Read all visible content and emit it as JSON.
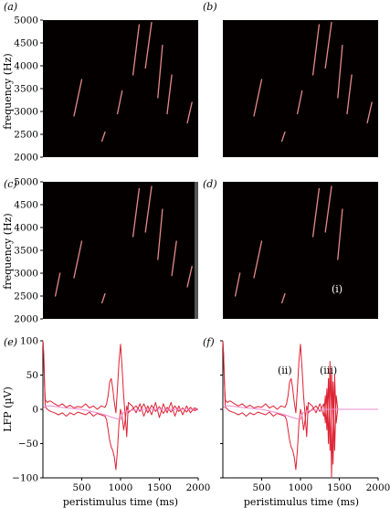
{
  "figure": {
    "panels": [
      {
        "key": "a",
        "label": "(a)"
      },
      {
        "key": "b",
        "label": "(b)"
      },
      {
        "key": "c",
        "label": "(c)"
      },
      {
        "key": "d",
        "label": "(d)"
      },
      {
        "key": "e",
        "label": "(e)"
      },
      {
        "key": "f",
        "label": "(f)"
      }
    ],
    "annotations": {
      "d_i": "(i)",
      "f_ii": "(ii)",
      "f_iii": "(iii)"
    }
  },
  "chart_data": [
    {
      "type": "heatmap",
      "panel": "a",
      "ylabel": "frequency (Hz)",
      "ylim": [
        2000,
        5000
      ],
      "yticks": [
        "2000",
        "2500",
        "3000",
        "3500",
        "4000",
        "4500",
        "5000"
      ],
      "background": "#050000",
      "stroke_color": "#ff9a9a",
      "strokes": [
        {
          "t0": 0.2,
          "f0": 2900,
          "t1": 0.25,
          "f1": 3700
        },
        {
          "t0": 0.38,
          "f0": 2350,
          "t1": 0.4,
          "f1": 2550
        },
        {
          "t0": 0.48,
          "f0": 2950,
          "t1": 0.51,
          "f1": 3450
        },
        {
          "t0": 0.58,
          "f0": 3800,
          "t1": 0.62,
          "f1": 4900
        },
        {
          "t0": 0.66,
          "f0": 3950,
          "t1": 0.7,
          "f1": 4950
        },
        {
          "t0": 0.74,
          "f0": 3300,
          "t1": 0.77,
          "f1": 4450
        },
        {
          "t0": 0.8,
          "f0": 2950,
          "t1": 0.83,
          "f1": 3800
        },
        {
          "t0": 0.93,
          "f0": 2750,
          "t1": 0.96,
          "f1": 3200
        }
      ]
    },
    {
      "type": "heatmap",
      "panel": "b",
      "ylim": [
        2000,
        5000
      ],
      "background": "#050000",
      "stroke_color": "#ff9a9a",
      "strokes": [
        {
          "t0": 0.2,
          "f0": 2900,
          "t1": 0.25,
          "f1": 3700
        },
        {
          "t0": 0.38,
          "f0": 2350,
          "t1": 0.4,
          "f1": 2550
        },
        {
          "t0": 0.48,
          "f0": 2950,
          "t1": 0.51,
          "f1": 3450
        },
        {
          "t0": 0.58,
          "f0": 3800,
          "t1": 0.62,
          "f1": 4900
        },
        {
          "t0": 0.66,
          "f0": 3950,
          "t1": 0.7,
          "f1": 4950
        },
        {
          "t0": 0.74,
          "f0": 3300,
          "t1": 0.77,
          "f1": 4450
        },
        {
          "t0": 0.8,
          "f0": 2950,
          "t1": 0.83,
          "f1": 3800
        },
        {
          "t0": 0.93,
          "f0": 2750,
          "t1": 0.96,
          "f1": 3200
        }
      ]
    },
    {
      "type": "heatmap",
      "panel": "c",
      "ylabel": "frequency (Hz)",
      "ylim": [
        2000,
        5000
      ],
      "yticks": [
        "2000",
        "2500",
        "3000",
        "3500",
        "4000",
        "4500",
        "5000"
      ],
      "background": "#050000",
      "stroke_color": "#ff9a9a",
      "strokes": [
        {
          "t0": 0.08,
          "f0": 2500,
          "t1": 0.11,
          "f1": 3000
        },
        {
          "t0": 0.2,
          "f0": 2900,
          "t1": 0.25,
          "f1": 3700
        },
        {
          "t0": 0.38,
          "f0": 2350,
          "t1": 0.4,
          "f1": 2550
        },
        {
          "t0": 0.58,
          "f0": 3800,
          "t1": 0.62,
          "f1": 4850
        },
        {
          "t0": 0.66,
          "f0": 3900,
          "t1": 0.7,
          "f1": 4900
        },
        {
          "t0": 0.74,
          "f0": 3300,
          "t1": 0.77,
          "f1": 4400
        },
        {
          "t0": 0.83,
          "f0": 2950,
          "t1": 0.86,
          "f1": 3700
        },
        {
          "t0": 0.93,
          "f0": 2700,
          "t1": 0.96,
          "f1": 3150
        }
      ]
    },
    {
      "type": "heatmap",
      "panel": "d",
      "ylim": [
        2000,
        5000
      ],
      "background": "#050000",
      "stroke_color": "#ff9a9a",
      "strokes": [
        {
          "t0": 0.08,
          "f0": 2500,
          "t1": 0.11,
          "f1": 3000
        },
        {
          "t0": 0.2,
          "f0": 2900,
          "t1": 0.25,
          "f1": 3700
        },
        {
          "t0": 0.38,
          "f0": 2350,
          "t1": 0.4,
          "f1": 2550
        },
        {
          "t0": 0.58,
          "f0": 3800,
          "t1": 0.62,
          "f1": 4850
        },
        {
          "t0": 0.66,
          "f0": 3900,
          "t1": 0.7,
          "f1": 4900
        },
        {
          "t0": 0.74,
          "f0": 3300,
          "t1": 0.77,
          "f1": 4400
        }
      ]
    },
    {
      "type": "line",
      "panel": "e",
      "xlabel": "peristimulus time (ms)",
      "ylabel": "LFP (µV)",
      "xlim": [
        0,
        2000
      ],
      "ylim": [
        -100,
        100
      ],
      "xticks": [
        "500",
        "1000",
        "1500",
        "2000"
      ],
      "yticks": [
        "−100",
        "−50",
        "0",
        "50",
        "100"
      ],
      "series": [
        {
          "color": "#dd2233",
          "x": [
            0,
            10,
            20,
            30,
            40,
            60,
            80,
            100,
            150,
            200,
            250,
            300,
            350,
            400,
            450,
            500,
            550,
            600,
            650,
            700,
            750,
            800,
            820,
            840,
            860,
            880,
            900,
            920,
            940,
            960,
            980,
            1000,
            1020,
            1040,
            1060,
            1080,
            1100,
            1150,
            1200,
            1250,
            1300,
            1350,
            1400,
            1450,
            1500,
            1550,
            1600,
            1650,
            1700,
            1750,
            1800,
            1850,
            1900,
            1950,
            2000
          ],
          "y": [
            100,
            80,
            40,
            15,
            12,
            10,
            12,
            12,
            8,
            5,
            8,
            3,
            6,
            2,
            4,
            3,
            8,
            2,
            5,
            0,
            5,
            3,
            8,
            20,
            40,
            45,
            30,
            10,
            -5,
            30,
            70,
            95,
            60,
            20,
            -10,
            -40,
            10,
            5,
            -5,
            8,
            -10,
            5,
            -8,
            10,
            -12,
            8,
            -5,
            10,
            -10,
            5,
            -8,
            5,
            -5,
            2,
            0
          ]
        },
        {
          "color": "#dd2233",
          "x": [
            0,
            10,
            20,
            30,
            40,
            60,
            80,
            100,
            150,
            200,
            250,
            300,
            350,
            400,
            450,
            500,
            550,
            600,
            650,
            700,
            750,
            800,
            820,
            840,
            860,
            880,
            900,
            920,
            940,
            960,
            980,
            1000,
            1020,
            1040,
            1060,
            1080,
            1100,
            1150,
            1200,
            1250,
            1300,
            1350,
            1400,
            1450,
            1500,
            1550,
            1600,
            1650,
            1700,
            1750,
            1800,
            1850,
            1900,
            1950,
            2000
          ],
          "y": [
            100,
            80,
            40,
            5,
            2,
            0,
            -2,
            -3,
            -5,
            -8,
            -5,
            -10,
            -5,
            -8,
            -4,
            -6,
            -8,
            -4,
            -10,
            -6,
            -8,
            -10,
            -15,
            -30,
            -45,
            -55,
            -60,
            -70,
            -88,
            -60,
            -20,
            0,
            -10,
            -30,
            -15,
            5,
            -5,
            0,
            5,
            -3,
            8,
            -5,
            6,
            -3,
            4,
            -6,
            3,
            -4,
            5,
            -3,
            2,
            -4,
            3,
            -2,
            0
          ]
        },
        {
          "color": "#ee88cc",
          "x": [
            0,
            30,
            100,
            300,
            500,
            700,
            800,
            900,
            1000,
            1030,
            1100,
            1300,
            1500,
            1800,
            2000
          ],
          "y": [
            0,
            5,
            5,
            2,
            0,
            -5,
            -8,
            -12,
            -15,
            -5,
            -2,
            0,
            0,
            0,
            0
          ]
        }
      ]
    },
    {
      "type": "line",
      "panel": "f",
      "xlabel": "peristimulus time (ms)",
      "xlim": [
        0,
        2000
      ],
      "ylim": [
        -100,
        100
      ],
      "xticks": [
        "500",
        "1000",
        "1500",
        "2000"
      ],
      "series": [
        {
          "color": "#dd2233",
          "x": [
            0,
            10,
            20,
            30,
            40,
            60,
            80,
            100,
            150,
            200,
            250,
            300,
            350,
            400,
            450,
            500,
            550,
            600,
            650,
            700,
            750,
            800,
            820,
            840,
            860,
            880,
            900,
            920,
            940,
            960,
            980,
            1000,
            1020,
            1040,
            1060,
            1080,
            1100,
            1150,
            1200,
            1250,
            1300,
            1320,
            1340,
            1360,
            1380,
            1400,
            1420,
            1440,
            1460,
            1480
          ],
          "y": [
            100,
            80,
            40,
            15,
            12,
            10,
            12,
            12,
            8,
            5,
            8,
            3,
            6,
            2,
            4,
            3,
            8,
            2,
            5,
            0,
            5,
            3,
            8,
            20,
            40,
            45,
            30,
            10,
            -5,
            30,
            70,
            95,
            60,
            20,
            -10,
            -40,
            10,
            5,
            -5,
            8,
            -10,
            20,
            -30,
            45,
            -60,
            60,
            -80,
            50,
            -20,
            0
          ]
        },
        {
          "color": "#dd2233",
          "x": [
            0,
            10,
            20,
            30,
            40,
            60,
            80,
            100,
            150,
            200,
            250,
            300,
            350,
            400,
            450,
            500,
            550,
            600,
            650,
            700,
            750,
            800,
            820,
            840,
            860,
            880,
            900,
            920,
            940,
            960,
            980,
            1000,
            1020,
            1040,
            1060,
            1080,
            1100,
            1150,
            1200,
            1250,
            1300,
            1320,
            1340,
            1360,
            1380,
            1400,
            1420,
            1440,
            1460,
            1480
          ],
          "y": [
            100,
            80,
            40,
            5,
            2,
            0,
            -2,
            -3,
            -5,
            -8,
            -5,
            -10,
            -5,
            -8,
            -4,
            -6,
            -8,
            -4,
            -10,
            -6,
            -8,
            -10,
            -15,
            -30,
            -45,
            -55,
            -60,
            -70,
            -88,
            -60,
            -20,
            0,
            -10,
            -30,
            -15,
            5,
            -5,
            0,
            5,
            -3,
            8,
            -20,
            30,
            -50,
            70,
            -100,
            40,
            -60,
            20,
            0
          ]
        },
        {
          "color": "#ee88cc",
          "x": [
            0,
            30,
            100,
            300,
            500,
            700,
            800,
            900,
            1000,
            1030,
            1100,
            1300,
            1480,
            1600,
            1800,
            2000
          ],
          "y": [
            0,
            5,
            5,
            2,
            0,
            -5,
            -8,
            -12,
            -15,
            -5,
            -2,
            0,
            0,
            0,
            0,
            0
          ]
        }
      ]
    }
  ]
}
